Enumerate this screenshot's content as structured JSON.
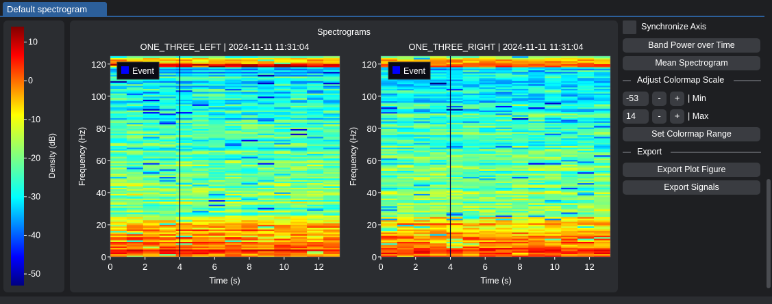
{
  "tab": {
    "label": "Default spectrogram"
  },
  "colorbar": {
    "label": "Density (dB)",
    "ticks": [
      "10",
      "0",
      "-10",
      "-20",
      "-30",
      "-40",
      "-50"
    ],
    "tick_values": [
      10,
      0,
      -10,
      -20,
      -30,
      -40,
      -50
    ],
    "range": [
      -53,
      14
    ],
    "colormap": "jet"
  },
  "figure": {
    "title": "Spectrograms"
  },
  "legend": {
    "label": "Event",
    "color": "#0000ff"
  },
  "plots": [
    {
      "title": "ONE_THREE_LEFT | 2024-11-11 11:31:04",
      "xlabel": "Time (s)",
      "ylabel": "Frequency (Hz)",
      "xticks": [
        "0",
        "2",
        "4",
        "6",
        "8",
        "10",
        "12"
      ],
      "yticks": [
        "0",
        "20",
        "40",
        "60",
        "80",
        "100",
        "120"
      ],
      "event_time": 4.0
    },
    {
      "title": "ONE_THREE_RIGHT | 2024-11-11 11:31:04",
      "xlabel": "Time (s)",
      "ylabel": "Frequency (Hz)",
      "xticks": [
        "0",
        "2",
        "4",
        "6",
        "8",
        "10",
        "12"
      ],
      "yticks": [
        "0",
        "20",
        "40",
        "60",
        "80",
        "100",
        "120"
      ],
      "event_time": 4.0
    }
  ],
  "chart_data": [
    {
      "type": "heatmap",
      "title": "ONE_THREE_LEFT | 2024-11-11 11:31:04",
      "xlabel": "Time (s)",
      "ylabel": "Frequency (Hz)",
      "xlim": [
        0,
        13.2
      ],
      "ylim": [
        0,
        125
      ],
      "color_range_db": [
        -53,
        14
      ],
      "event_markers": [
        {
          "label": "Event",
          "time": 4.0
        }
      ]
    },
    {
      "type": "heatmap",
      "title": "ONE_THREE_RIGHT | 2024-11-11 11:31:04",
      "xlabel": "Time (s)",
      "ylabel": "Frequency (Hz)",
      "xlim": [
        0,
        13.2
      ],
      "ylim": [
        0,
        125
      ],
      "color_range_db": [
        -53,
        14
      ],
      "event_markers": [
        {
          "label": "Event",
          "time": 4.0
        }
      ]
    }
  ],
  "controls": {
    "sync_axis_label": "Synchronize Axis",
    "sync_axis_checked": false,
    "band_power_button": "Band Power over Time",
    "mean_spectrogram_button": "Mean Spectrogram",
    "adjust_section": "Adjust Colormap Scale",
    "min_value": "-53",
    "max_value": "14",
    "minus": "-",
    "plus": "+",
    "min_label": "| Min",
    "max_label": "| Max",
    "set_range_button": "Set Colormap Range",
    "export_section": "Export",
    "export_plot_button": "Export Plot Figure",
    "export_signals_button": "Export Signals"
  }
}
